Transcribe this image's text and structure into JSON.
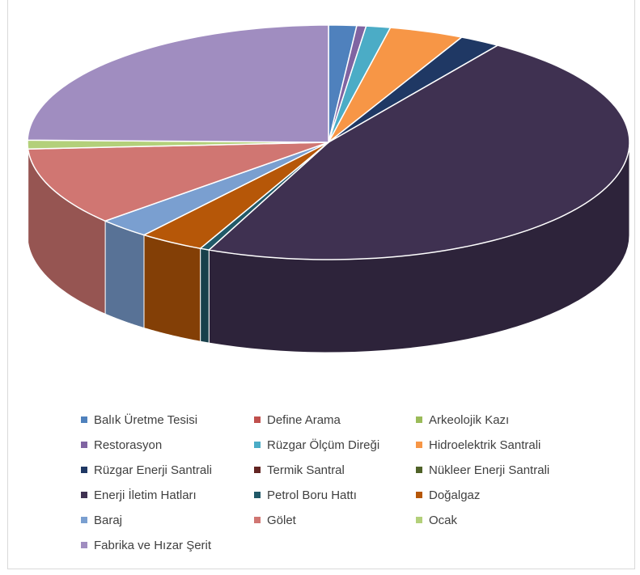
{
  "chart_data": {
    "type": "pie",
    "title": "",
    "categories": [
      "Balık Üretme Tesisi",
      "Define Arama",
      "Arkeolojik Kazı",
      "Restorasyon",
      "Rüzgar Ölçüm Direği",
      "Hidroelektrik Santrali",
      "Rüzgar Enerji Santrali",
      "Termik Santral",
      "Nükleer Enerji Santrali",
      "Enerji İletim Hatları",
      "Petrol Boru Hattı",
      "Doğalgaz",
      "Baraj",
      "Gölet",
      "Ocak",
      "Fabrika ve Hızar Şerit"
    ],
    "values": [
      1.5,
      0,
      0,
      0.5,
      1.3,
      4.0,
      2.2,
      0,
      0,
      47.0,
      0.5,
      3.5,
      2.8,
      10.8,
      1.2,
      24.7
    ],
    "colors": [
      "#4f81bd",
      "#c0504d",
      "#9bbb59",
      "#8064a2",
      "#4bacc6",
      "#f79646",
      "#1f3864",
      "#632523",
      "#4f6228",
      "#3f3151",
      "#215968",
      "#b65708",
      "#7a9fd0",
      "#d07672",
      "#b3d07a",
      "#a08dc0"
    ],
    "legend_position": "bottom",
    "style": "3d-pie"
  }
}
